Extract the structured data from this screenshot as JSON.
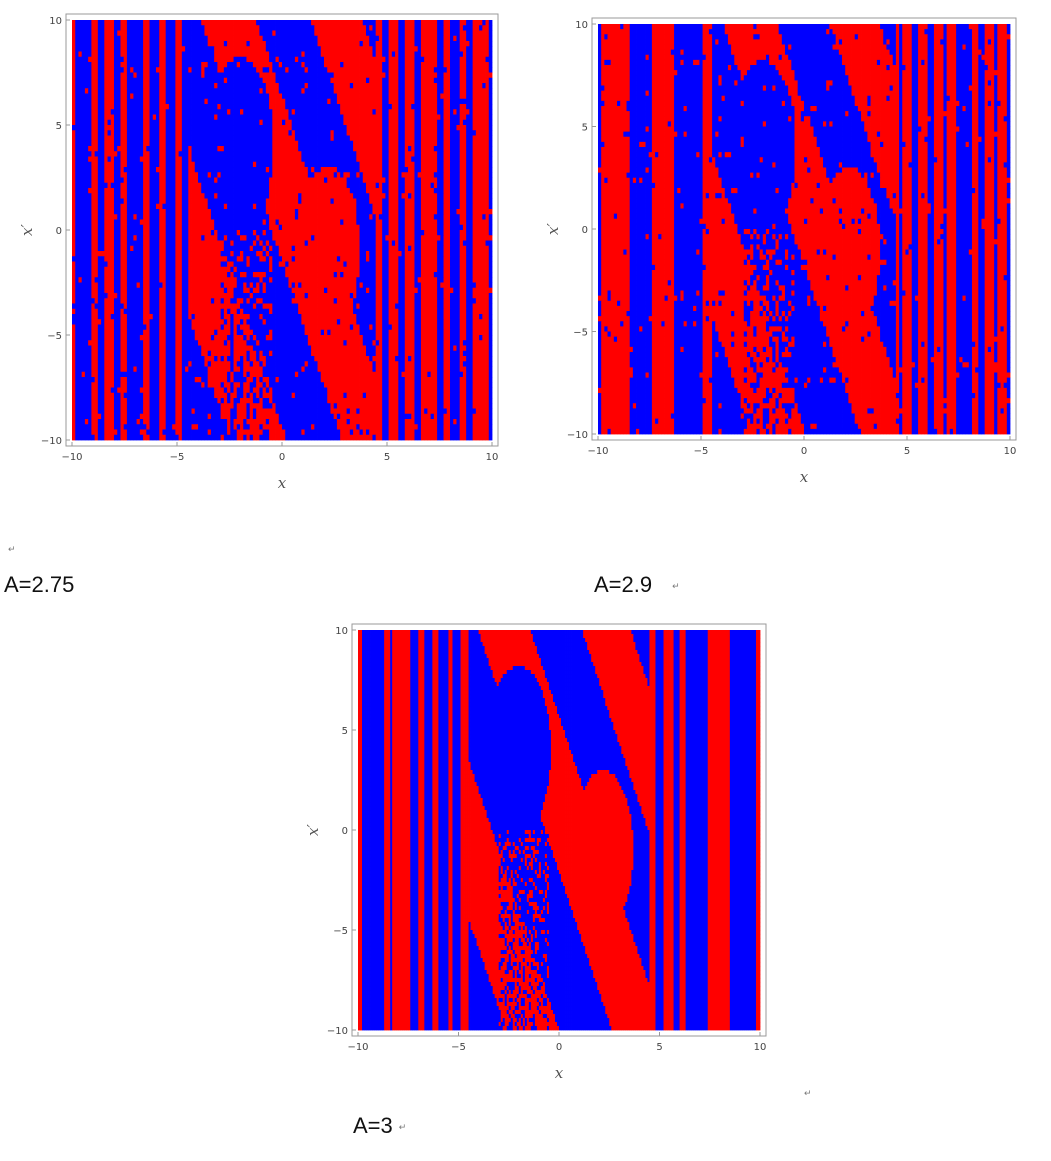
{
  "figures": [
    {
      "caption": "A=2.75",
      "xlabel": "x",
      "ylabel": "x′"
    },
    {
      "caption": "A=2.9",
      "xlabel": "x",
      "ylabel": "x′"
    },
    {
      "caption": "A=3",
      "xlabel": "x",
      "ylabel": "x′"
    }
  ],
  "return_mark": "↵",
  "colors": {
    "basin_a": "#ff0000",
    "basin_b": "#0000ff",
    "frame": "#999999",
    "tick_text": "#444444"
  },
  "chart_data": [
    {
      "type": "heatmap",
      "title": "",
      "xlabel": "x",
      "ylabel": "x′",
      "xlim": [
        -10,
        10
      ],
      "ylim": [
        -10,
        10
      ],
      "x_ticks": [
        -10,
        -5,
        0,
        5,
        10
      ],
      "y_ticks": [
        -10,
        -5,
        0,
        5,
        10
      ],
      "x_tick_labels": [
        "−10",
        "−5",
        "0",
        "5",
        "10"
      ],
      "y_tick_labels": [
        "−10",
        "−5",
        "0",
        "5",
        "10"
      ],
      "values_legend": [
        "red",
        "blue"
      ],
      "parameter": "A=2.75",
      "grid": false
    },
    {
      "type": "heatmap",
      "title": "",
      "xlabel": "x",
      "ylabel": "x′",
      "xlim": [
        -10,
        10
      ],
      "ylim": [
        -10,
        10
      ],
      "x_ticks": [
        -10,
        -5,
        0,
        5,
        10
      ],
      "y_ticks": [
        -10,
        -5,
        0,
        5,
        10
      ],
      "x_tick_labels": [
        "−10",
        "−5",
        "0",
        "5",
        "10"
      ],
      "y_tick_labels": [
        "−10",
        "−5",
        "0",
        "5",
        "10"
      ],
      "values_legend": [
        "red",
        "blue"
      ],
      "parameter": "A=2.9",
      "grid": false
    },
    {
      "type": "heatmap",
      "title": "",
      "xlabel": "x",
      "ylabel": "x′",
      "xlim": [
        -10,
        10
      ],
      "ylim": [
        -10,
        10
      ],
      "x_ticks": [
        -10,
        -5,
        0,
        5,
        10
      ],
      "y_ticks": [
        -10,
        -5,
        0,
        5,
        10
      ],
      "x_tick_labels": [
        "−10",
        "−5",
        "0",
        "5",
        "10"
      ],
      "y_tick_labels": [
        "−10",
        "−5",
        "0",
        "5",
        "10"
      ],
      "values_legend": [
        "red",
        "blue"
      ],
      "parameter": "A=3",
      "grid": false
    }
  ]
}
